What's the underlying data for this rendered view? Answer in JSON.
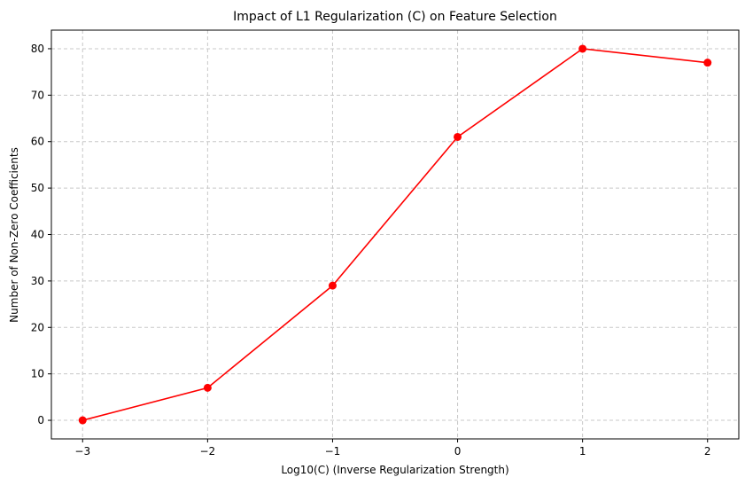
{
  "chart_data": {
    "type": "line",
    "title": "Impact of L1 Regularization (C) on Feature Selection",
    "xlabel": "Log10(C) (Inverse Regularization Strength)",
    "ylabel": "Number of Non-Zero Coefficients",
    "x": [
      -3,
      -2,
      -1,
      0,
      1,
      2
    ],
    "series": [
      {
        "values": [
          0,
          7,
          29,
          61,
          80,
          77
        ],
        "color": "#ff0000",
        "marker": "circle"
      }
    ],
    "xlim": [
      -3.25,
      2.25
    ],
    "ylim": [
      -4,
      84
    ],
    "xticks": [
      -3,
      -2,
      -1,
      0,
      1,
      2
    ],
    "xtick_labels": [
      "−3",
      "−2",
      "−1",
      "0",
      "1",
      "2"
    ],
    "yticks": [
      0,
      10,
      20,
      30,
      40,
      50,
      60,
      70,
      80
    ],
    "ytick_labels": [
      "0",
      "10",
      "20",
      "30",
      "40",
      "50",
      "60",
      "70",
      "80"
    ],
    "grid": true,
    "grid_style": "dashed",
    "grid_color": "#c8c8c8"
  }
}
